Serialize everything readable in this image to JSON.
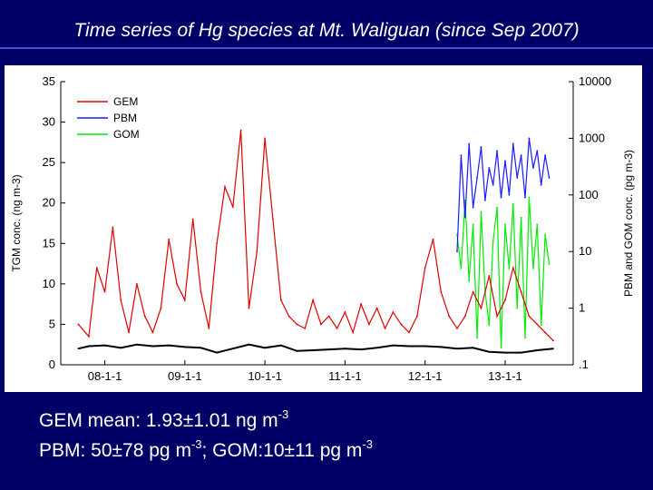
{
  "slide": {
    "title": "Time series of Hg species at Mt. Waliguan (since Sep 2007)",
    "background": "#000066"
  },
  "chart_data": {
    "type": "line",
    "title": "",
    "x_tick_labels": [
      "08-1-1",
      "09-1-1",
      "10-1-1",
      "11-1-1",
      "12-1-1",
      "13-1-1"
    ],
    "ylabel_left": "TGM conc. (ng m-3)",
    "ylabel_right": "PBM and GOM conc. (pg m-3)",
    "ylim_left": [
      0,
      35
    ],
    "yticks_left": [
      "0",
      "5",
      "10",
      "15",
      "20",
      "25",
      "30",
      "35"
    ],
    "ylim_right": [
      0.1,
      10000
    ],
    "right_scale": "log",
    "yticks_right": [
      ".1",
      "1",
      "10",
      "100",
      "1000",
      "10000"
    ],
    "legend_position": "top-left",
    "grid": false,
    "series": [
      {
        "name": "GEM",
        "axis": "left",
        "color": "#e00000",
        "x": [
          2007.67,
          2007.8,
          2007.9,
          2008.0,
          2008.1,
          2008.2,
          2008.3,
          2008.4,
          2008.5,
          2008.6,
          2008.7,
          2008.8,
          2008.9,
          2009.0,
          2009.1,
          2009.2,
          2009.3,
          2009.4,
          2009.5,
          2009.6,
          2009.7,
          2009.8,
          2009.9,
          2010.0,
          2010.1,
          2010.2,
          2010.3,
          2010.4,
          2010.5,
          2010.6,
          2010.7,
          2010.8,
          2010.9,
          2011.0,
          2011.1,
          2011.2,
          2011.3,
          2011.4,
          2011.5,
          2011.6,
          2011.7,
          2011.8,
          2011.9,
          2012.0,
          2012.1,
          2012.2,
          2012.3,
          2012.4,
          2012.5,
          2012.6,
          2012.7,
          2012.8,
          2012.9,
          2013.0,
          2013.1,
          2013.2,
          2013.3,
          2013.4,
          2013.5,
          2013.6
        ],
        "values": [
          5.0,
          3.5,
          12.0,
          9.0,
          17.0,
          8.0,
          4.0,
          10.0,
          6.0,
          4.0,
          7.0,
          15.5,
          10.0,
          8.0,
          18.0,
          9.0,
          4.5,
          15.0,
          22.0,
          19.5,
          29.0,
          7.0,
          14.0,
          28.0,
          18.0,
          8.0,
          6.0,
          5.0,
          4.5,
          8.0,
          5.0,
          6.0,
          4.5,
          6.5,
          4.0,
          7.5,
          5.0,
          7.0,
          4.5,
          6.5,
          5.0,
          4.0,
          6.0,
          12.0,
          15.5,
          9.0,
          6.0,
          4.5,
          6.0,
          9.0,
          7.0,
          11.0,
          6.0,
          8.0,
          12.0,
          9.0,
          6.0,
          5.0,
          4.0,
          3.0
        ]
      },
      {
        "name": "",
        "axis": "left",
        "color": "#000000",
        "x": [
          2007.67,
          2007.8,
          2008.0,
          2008.2,
          2008.4,
          2008.6,
          2008.8,
          2009.0,
          2009.2,
          2009.4,
          2009.6,
          2009.8,
          2010.0,
          2010.2,
          2010.4,
          2010.6,
          2010.8,
          2011.0,
          2011.2,
          2011.4,
          2011.6,
          2011.8,
          2012.0,
          2012.2,
          2012.4,
          2012.6,
          2012.8,
          2013.0,
          2013.2,
          2013.4,
          2013.6
        ],
        "values": [
          2.0,
          2.3,
          2.4,
          2.1,
          2.5,
          2.3,
          2.4,
          2.2,
          2.1,
          1.5,
          2.0,
          2.5,
          2.1,
          2.4,
          1.7,
          1.8,
          1.9,
          2.0,
          1.9,
          2.1,
          2.4,
          2.3,
          2.3,
          2.2,
          2.0,
          2.1,
          1.6,
          1.5,
          1.5,
          1.8,
          2.0
        ]
      },
      {
        "name": "PBM",
        "axis": "right",
        "color": "#1a1aff",
        "x": [
          2012.4,
          2012.45,
          2012.5,
          2012.55,
          2012.6,
          2012.65,
          2012.7,
          2012.75,
          2012.8,
          2012.85,
          2012.9,
          2012.95,
          2013.0,
          2013.05,
          2013.1,
          2013.15,
          2013.2,
          2013.25,
          2013.3,
          2013.35,
          2013.4,
          2013.45,
          2013.5,
          2013.55
        ],
        "values": [
          10,
          500,
          40,
          800,
          60,
          200,
          700,
          80,
          300,
          150,
          600,
          90,
          400,
          100,
          800,
          200,
          500,
          90,
          1000,
          300,
          600,
          150,
          500,
          200
        ]
      },
      {
        "name": "GOM",
        "axis": "right",
        "color": "#00ee00",
        "x": [
          2012.4,
          2012.45,
          2012.5,
          2012.55,
          2012.6,
          2012.65,
          2012.7,
          2012.75,
          2012.8,
          2012.85,
          2012.9,
          2012.95,
          2013.0,
          2013.05,
          2013.1,
          2013.15,
          2013.2,
          2013.25,
          2013.3,
          2013.35,
          2013.4,
          2013.45,
          2013.5,
          2013.55
        ],
        "values": [
          20,
          5,
          80,
          3,
          30,
          0.3,
          50,
          2,
          0.5,
          15,
          60,
          0.2,
          30,
          5,
          70,
          1,
          40,
          0.3,
          90,
          5,
          30,
          0.5,
          20,
          6
        ]
      }
    ],
    "x_range": [
      2007.45,
      2013.85
    ],
    "x_ticks": [
      2008.0,
      2009.0,
      2010.0,
      2011.0,
      2012.0,
      2013.0
    ]
  },
  "caption": {
    "line1_text": "GEM mean: 1.93±1.01 ng m",
    "line1_sup": "-3",
    "line2_pbm": "PBM: 50±78 pg m",
    "line2_pbm_sup": "-3",
    "line2_sep": ";  GOM:10±11 pg m",
    "line2_gom_sup": "-3"
  }
}
